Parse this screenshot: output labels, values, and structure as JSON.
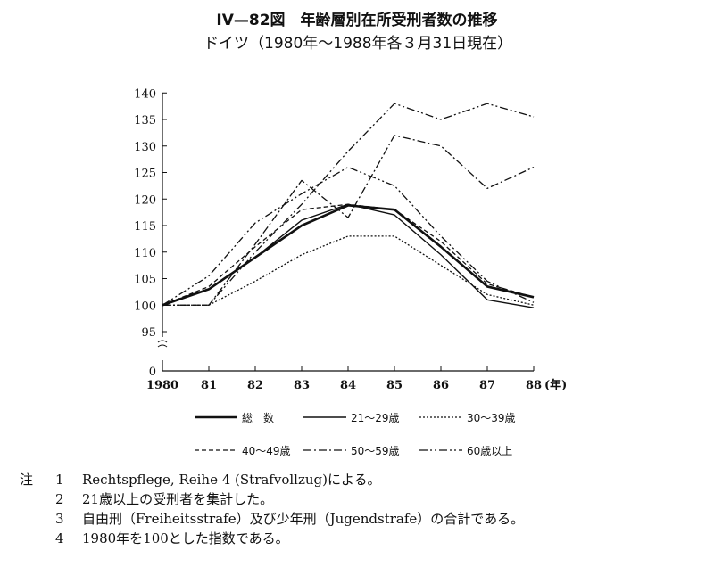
{
  "title": "IV—82図　年齢層別在所受刑者数の推移",
  "subtitle": "ドイツ（1980年～1988年各３月31日現在）",
  "chart_data": {
    "type": "line",
    "title": "IV—82図　年齢層別在所受刑者数の推移",
    "subtitle": "ドイツ（1980年～1988年各３月31日現在）",
    "xlabel": "",
    "x_unit": "(年)",
    "ylabel": "",
    "x": [
      "1980",
      "81",
      "82",
      "83",
      "84",
      "85",
      "86",
      "87",
      "88"
    ],
    "ylim": [
      95,
      140
    ],
    "y_break": true,
    "y_ticks": [
      95,
      100,
      105,
      110,
      115,
      120,
      125,
      130,
      135,
      140
    ],
    "y_zero_label": "0",
    "grid": false,
    "legend_position": "bottom",
    "series": [
      {
        "name": "総　数",
        "style": "thick-solid",
        "values": [
          100,
          103,
          109,
          115,
          118.8,
          118,
          111,
          103.5,
          101.5
        ]
      },
      {
        "name": "21～29歳",
        "style": "solid",
        "values": [
          100,
          103,
          109,
          116,
          119,
          117,
          109.5,
          101,
          99.5
        ]
      },
      {
        "name": "30～39歳",
        "style": "dotted",
        "values": [
          100,
          100,
          104.5,
          109.5,
          113,
          113,
          107.5,
          102,
          100
        ]
      },
      {
        "name": "40～49歳",
        "style": "dashed",
        "values": [
          100,
          103.5,
          111,
          118,
          119,
          118,
          112,
          104,
          101.5
        ]
      },
      {
        "name": "50～59歳",
        "style": "dash-dot",
        "values": [
          100,
          100,
          111.5,
          123.5,
          116.5,
          132,
          130,
          122,
          126
        ]
      },
      {
        "name": "60歳以上",
        "style": "dash-dot-dot",
        "values": [
          100,
          105.5,
          115.5,
          121,
          126,
          122.5,
          113,
          104.5,
          100.5
        ]
      }
    ],
    "series_extra": [
      {
        "name": "60歳以上",
        "values": [
          100,
          100,
          110,
          119,
          129,
          138,
          135,
          138,
          135.5
        ]
      }
    ]
  },
  "notes": {
    "prefix": "注",
    "items": [
      {
        "num": "1",
        "text": "Rechtspflege, Reihe 4 (Strafvollzug)による。"
      },
      {
        "num": "2",
        "text": "21歳以上の受刑者を集計した。"
      },
      {
        "num": "3",
        "text": "自由刑（Freiheitsstrafe）及び少年刑（Jugendstrafe）の合計である。"
      },
      {
        "num": "4",
        "text": "1980年を100とした指数である。"
      }
    ]
  }
}
